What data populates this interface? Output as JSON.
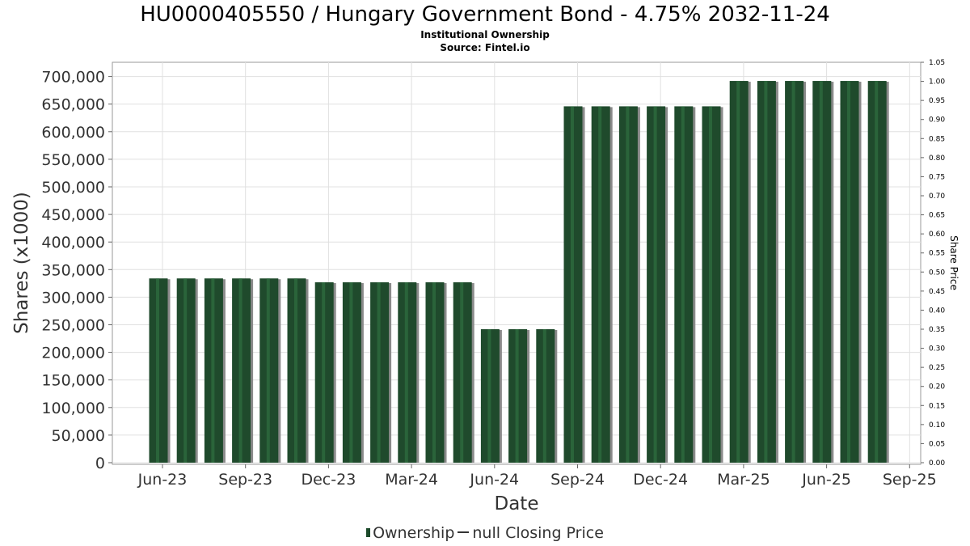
{
  "header": {
    "title": "HU0000405550 / Hungary Government Bond - 4.75% 2032-11-24",
    "subtitle": "Institutional Ownership",
    "source": "Source: Fintel.io"
  },
  "legend": {
    "ownership_label": "Ownership",
    "price_label": "null Closing Price"
  },
  "colors": {
    "bar": "#1f4a2c",
    "bar_shadow": "#8a8a8a",
    "grid": "#e0e0e0"
  },
  "chart_data": {
    "type": "bar",
    "xlabel": "Date",
    "ylabel": "Shares (x1000)",
    "y2label": "Share Price",
    "ylim": [
      0,
      720000
    ],
    "y2lim": [
      0,
      1.05
    ],
    "grid": true,
    "legend_position": "bottom",
    "x_ticks": [
      "Jun-23",
      "Sep-23",
      "Dec-23",
      "Mar-24",
      "Jun-24",
      "Sep-24",
      "Dec-24",
      "Mar-25",
      "Jun-25",
      "Sep-25"
    ],
    "y_ticks": [
      "0",
      "50,000",
      "100,000",
      "150,000",
      "200,000",
      "250,000",
      "300,000",
      "350,000",
      "400,000",
      "450,000",
      "500,000",
      "550,000",
      "600,000",
      "650,000",
      "700,000"
    ],
    "y2_ticks": [
      "0.00",
      "0.05",
      "0.10",
      "0.15",
      "0.20",
      "0.25",
      "0.30",
      "0.35",
      "0.40",
      "0.45",
      "0.50",
      "0.55",
      "0.60",
      "0.65",
      "0.70",
      "0.75",
      "0.80",
      "0.85",
      "0.90",
      "0.95",
      "1.00",
      "1.05"
    ],
    "series": [
      {
        "name": "Ownership",
        "values": [
          334000,
          334000,
          334000,
          334000,
          334000,
          334000,
          327000,
          327000,
          327000,
          327000,
          327000,
          327000,
          242000,
          242000,
          242000,
          646000,
          646000,
          646000,
          646000,
          646000,
          646000,
          692000,
          692000,
          692000,
          692000,
          692000,
          692000
        ]
      }
    ]
  }
}
